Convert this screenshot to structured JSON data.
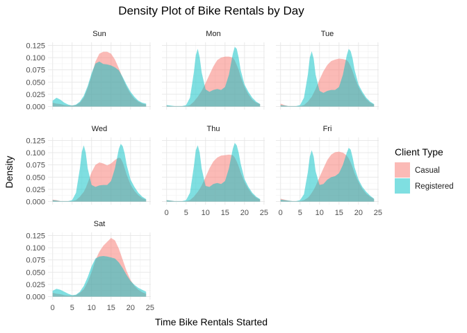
{
  "chart_data": {
    "type": "area",
    "title": "Density Plot of Bike Rentals by Day",
    "xlabel": "Time Bike Rentals Started",
    "ylabel": "Density",
    "xlim": [
      0,
      24
    ],
    "ylim": [
      0,
      0.125
    ],
    "xticks": [
      "0",
      "5",
      "10",
      "15",
      "20",
      "25"
    ],
    "yticks": [
      "0.000",
      "0.025",
      "0.050",
      "0.075",
      "0.100",
      "0.125"
    ],
    "grid": true,
    "legend": {
      "title": "Client Type",
      "position": "right",
      "entries": [
        {
          "name": "Casual",
          "color": "#F8766D"
        },
        {
          "name": "Registered",
          "color": "#00BFC4"
        }
      ]
    },
    "facets": [
      {
        "label": "Sun",
        "x": [
          0,
          1,
          2,
          3,
          4,
          5,
          6,
          7,
          8,
          9,
          10,
          11,
          12,
          13,
          14,
          15,
          16,
          17,
          18,
          19,
          20,
          21,
          22,
          23,
          24
        ],
        "series": [
          {
            "name": "Casual",
            "values": [
              0.008,
              0.006,
              0.005,
              0.003,
              0.002,
              0.002,
              0.003,
              0.008,
              0.018,
              0.038,
              0.063,
              0.092,
              0.108,
              0.112,
              0.112,
              0.108,
              0.096,
              0.078,
              0.058,
              0.04,
              0.026,
              0.016,
              0.01,
              0.006,
              0.004
            ]
          },
          {
            "name": "Registered",
            "values": [
              0.012,
              0.018,
              0.014,
              0.008,
              0.004,
              0.002,
              0.004,
              0.01,
              0.022,
              0.042,
              0.068,
              0.088,
              0.092,
              0.087,
              0.086,
              0.084,
              0.08,
              0.074,
              0.06,
              0.044,
              0.03,
              0.02,
              0.012,
              0.008,
              0.006
            ]
          }
        ]
      },
      {
        "label": "Mon",
        "x": [
          0,
          1,
          2,
          3,
          4,
          5,
          6,
          7,
          7.5,
          8,
          8.5,
          9,
          10,
          11,
          12,
          13,
          14,
          15,
          16,
          17,
          17.5,
          18,
          18.5,
          19,
          20,
          21,
          22,
          23,
          24
        ],
        "series": [
          {
            "name": "Casual",
            "values": [
              0.002,
              0.001,
              0.001,
              0.001,
              0.001,
              0.001,
              0.003,
              0.01,
              0.015,
              0.02,
              0.026,
              0.032,
              0.048,
              0.065,
              0.082,
              0.095,
              0.1,
              0.102,
              0.102,
              0.1,
              0.094,
              0.085,
              0.075,
              0.062,
              0.04,
              0.025,
              0.014,
              0.008,
              0.005
            ]
          },
          {
            "name": "Registered",
            "values": [
              0.003,
              0.002,
              0.001,
              0.001,
              0.001,
              0.003,
              0.018,
              0.07,
              0.105,
              0.118,
              0.1,
              0.07,
              0.035,
              0.03,
              0.034,
              0.036,
              0.034,
              0.04,
              0.065,
              0.108,
              0.122,
              0.118,
              0.1,
              0.075,
              0.045,
              0.03,
              0.018,
              0.01,
              0.005
            ]
          }
        ]
      },
      {
        "label": "Tue",
        "x": [
          0,
          1,
          2,
          3,
          4,
          5,
          6,
          7,
          7.5,
          8,
          8.5,
          9,
          10,
          11,
          12,
          13,
          14,
          15,
          16,
          17,
          17.5,
          18,
          18.5,
          19,
          20,
          21,
          22,
          23,
          24
        ],
        "series": [
          {
            "name": "Casual",
            "values": [
              0.006,
              0.003,
              0.001,
              0.001,
              0.001,
              0.001,
              0.003,
              0.01,
              0.015,
              0.02,
              0.028,
              0.036,
              0.055,
              0.072,
              0.085,
              0.093,
              0.096,
              0.098,
              0.097,
              0.095,
              0.09,
              0.082,
              0.072,
              0.06,
              0.04,
              0.026,
              0.015,
              0.008,
              0.004
            ]
          },
          {
            "name": "Registered",
            "values": [
              0.003,
              0.002,
              0.001,
              0.001,
              0.001,
              0.003,
              0.018,
              0.065,
              0.1,
              0.113,
              0.098,
              0.065,
              0.032,
              0.028,
              0.032,
              0.034,
              0.034,
              0.04,
              0.065,
              0.105,
              0.118,
              0.113,
              0.098,
              0.075,
              0.045,
              0.03,
              0.018,
              0.01,
              0.005
            ]
          }
        ]
      },
      {
        "label": "Wed",
        "x": [
          0,
          1,
          2,
          3,
          4,
          5,
          6,
          7,
          7.5,
          8,
          8.5,
          9,
          10,
          11,
          12,
          13,
          14,
          15,
          16,
          17,
          17.5,
          18,
          18.5,
          19,
          20,
          21,
          22,
          23,
          24
        ],
        "series": [
          {
            "name": "Casual",
            "values": [
              0.004,
              0.003,
              0.001,
              0.001,
              0.001,
              0.001,
              0.003,
              0.01,
              0.015,
              0.02,
              0.028,
              0.038,
              0.06,
              0.075,
              0.08,
              0.078,
              0.074,
              0.078,
              0.085,
              0.09,
              0.088,
              0.08,
              0.068,
              0.055,
              0.035,
              0.022,
              0.013,
              0.007,
              0.004
            ]
          },
          {
            "name": "Registered",
            "values": [
              0.003,
              0.002,
              0.001,
              0.001,
              0.001,
              0.003,
              0.018,
              0.068,
              0.102,
              0.115,
              0.1,
              0.068,
              0.034,
              0.03,
              0.033,
              0.034,
              0.034,
              0.042,
              0.068,
              0.108,
              0.118,
              0.113,
              0.098,
              0.075,
              0.045,
              0.03,
              0.018,
              0.01,
              0.005
            ]
          }
        ]
      },
      {
        "label": "Thu",
        "x": [
          0,
          1,
          2,
          3,
          4,
          5,
          6,
          7,
          7.5,
          8,
          8.5,
          9,
          10,
          11,
          12,
          13,
          14,
          15,
          16,
          17,
          17.5,
          18,
          18.5,
          19,
          20,
          21,
          22,
          23,
          24
        ],
        "series": [
          {
            "name": "Casual",
            "values": [
              0.003,
              0.002,
              0.001,
              0.001,
              0.001,
              0.001,
              0.003,
              0.01,
              0.015,
              0.02,
              0.026,
              0.033,
              0.05,
              0.068,
              0.082,
              0.09,
              0.094,
              0.095,
              0.096,
              0.095,
              0.09,
              0.082,
              0.072,
              0.06,
              0.04,
              0.026,
              0.015,
              0.008,
              0.004
            ]
          },
          {
            "name": "Registered",
            "values": [
              0.003,
              0.002,
              0.001,
              0.001,
              0.001,
              0.003,
              0.018,
              0.072,
              0.105,
              0.115,
              0.1,
              0.068,
              0.032,
              0.03,
              0.036,
              0.038,
              0.036,
              0.042,
              0.068,
              0.108,
              0.12,
              0.115,
              0.1,
              0.078,
              0.046,
              0.03,
              0.018,
              0.01,
              0.005
            ]
          }
        ]
      },
      {
        "label": "Fri",
        "x": [
          0,
          1,
          2,
          3,
          4,
          5,
          6,
          7,
          7.5,
          8,
          8.5,
          9,
          10,
          11,
          12,
          13,
          14,
          15,
          16,
          17,
          17.5,
          18,
          18.5,
          19,
          20,
          21,
          22,
          23,
          24
        ],
        "series": [
          {
            "name": "Casual",
            "values": [
              0.006,
              0.004,
              0.002,
              0.001,
              0.001,
              0.001,
              0.003,
              0.008,
              0.012,
              0.018,
              0.024,
              0.032,
              0.05,
              0.068,
              0.085,
              0.096,
              0.101,
              0.102,
              0.1,
              0.094,
              0.088,
              0.08,
              0.07,
              0.058,
              0.04,
              0.026,
              0.016,
              0.01,
              0.005
            ]
          },
          {
            "name": "Registered",
            "values": [
              0.004,
              0.003,
              0.002,
              0.001,
              0.001,
              0.003,
              0.015,
              0.06,
              0.092,
              0.105,
              0.092,
              0.062,
              0.034,
              0.036,
              0.045,
              0.05,
              0.052,
              0.058,
              0.075,
              0.1,
              0.11,
              0.106,
              0.09,
              0.07,
              0.045,
              0.03,
              0.02,
              0.012,
              0.006
            ]
          }
        ]
      },
      {
        "label": "Sat",
        "x": [
          0,
          1,
          2,
          3,
          4,
          5,
          6,
          7,
          8,
          9,
          10,
          11,
          12,
          13,
          14,
          15,
          16,
          17,
          18,
          19,
          20,
          21,
          22,
          23,
          24
        ],
        "series": [
          {
            "name": "Casual",
            "values": [
              0.008,
              0.006,
              0.005,
              0.003,
              0.002,
              0.002,
              0.003,
              0.008,
              0.015,
              0.03,
              0.05,
              0.075,
              0.092,
              0.104,
              0.112,
              0.12,
              0.115,
              0.098,
              0.075,
              0.052,
              0.034,
              0.022,
              0.014,
              0.009,
              0.006
            ]
          },
          {
            "name": "Registered",
            "values": [
              0.012,
              0.016,
              0.014,
              0.01,
              0.006,
              0.003,
              0.004,
              0.01,
              0.022,
              0.04,
              0.062,
              0.078,
              0.082,
              0.083,
              0.082,
              0.08,
              0.078,
              0.07,
              0.058,
              0.044,
              0.032,
              0.024,
              0.018,
              0.014,
              0.01
            ]
          }
        ]
      }
    ]
  }
}
